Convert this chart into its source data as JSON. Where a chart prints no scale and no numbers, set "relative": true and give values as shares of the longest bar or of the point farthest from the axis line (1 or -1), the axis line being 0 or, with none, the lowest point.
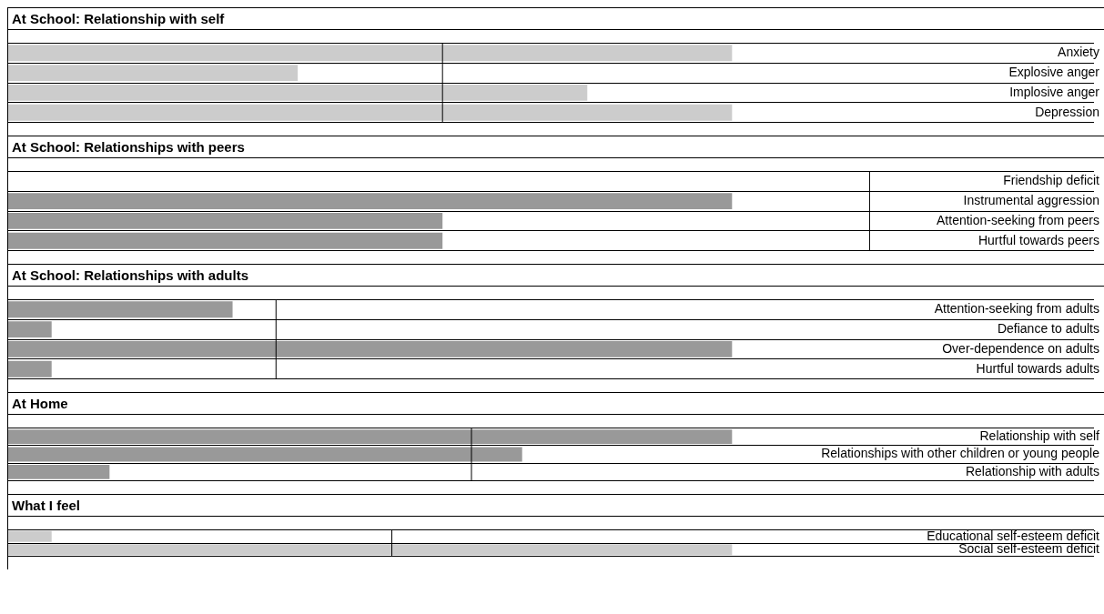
{
  "chart_data": [
    {
      "type": "bar",
      "orientation": "horizontal",
      "relative": true,
      "title": "At School: Relationship with self",
      "categories": [
        "Anxiety",
        "Explosive anger",
        "Implosive anger",
        "Depression"
      ],
      "values": [
        1,
        0.4,
        0.8,
        1
      ],
      "color": "#cccccc",
      "grid": "y",
      "ref_lines": [
        {
          "axis": "x",
          "value": 0.6,
          "color": "#000000"
        }
      ]
    },
    {
      "type": "bar",
      "orientation": "horizontal",
      "relative": true,
      "title": "At School: Relationships with peers",
      "categories": [
        "Friendship deficit",
        "Instrumental aggression",
        "Attention-seeking from peers",
        "Hurtful towards peers"
      ],
      "values": [
        0,
        1,
        0.6,
        0.6
      ],
      "color": "#999999",
      "grid": "y",
      "ref_lines": [
        {
          "axis": "x",
          "value": 1.19,
          "color": "#000000"
        }
      ]
    },
    {
      "type": "bar",
      "orientation": "horizontal",
      "relative": true,
      "title": "At School: Relationships with adults",
      "categories": [
        "Attention-seeking from adults",
        "Defiance to adults",
        "Over-dependence on adults",
        "Hurtful towards adults"
      ],
      "values": [
        0.31,
        0.06,
        1,
        0.06
      ],
      "color": "#999999",
      "grid": "y",
      "ref_lines": [
        {
          "axis": "x",
          "value": 0.37,
          "color": "#000000"
        }
      ]
    },
    {
      "type": "bar",
      "orientation": "horizontal",
      "relative": true,
      "title": "At Home",
      "categories": [
        "Relationship with self",
        "Relationships with other children or young people",
        "Relationship with adults"
      ],
      "values": [
        1,
        0.71,
        0.14
      ],
      "color": "#999999",
      "grid": "y",
      "ref_lines": [
        {
          "axis": "x",
          "value": 0.64,
          "color": "#000000"
        }
      ]
    },
    {
      "type": "bar",
      "orientation": "horizontal",
      "relative": true,
      "title": "What I feel",
      "categories": [
        "Educational self-esteem deficit",
        "Social self-esteem deficit"
      ],
      "values": [
        0.06,
        1
      ],
      "color": "#cccccc",
      "grid": "y",
      "ref_lines": [
        {
          "axis": "x",
          "value": 0.53,
          "color": "#000000"
        }
      ]
    }
  ]
}
